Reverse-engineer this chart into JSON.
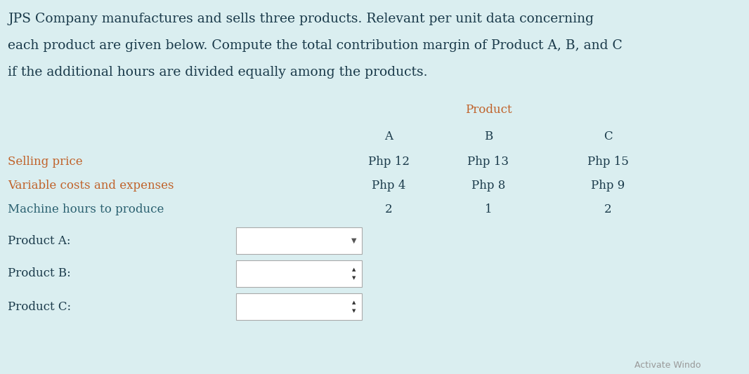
{
  "bg_color": "#daeef0",
  "text_color_dark": "#1a3a4a",
  "text_color_orange": "#c0622a",
  "text_color_blue": "#2a6070",
  "header_text": "JPS Company manufactures and sells three products. Relevant per unit data concerning\neach product are given below. Compute the total contribution margin of Product A, B, and C\nif the additional hours are divided equally among the products.",
  "product_label": "Product",
  "col_headers": [
    "A",
    "B",
    "C"
  ],
  "row_labels": [
    "Selling price",
    "Variable costs and expenses",
    "Machine hours to produce"
  ],
  "row_label_colors": [
    "orange",
    "orange",
    "blue"
  ],
  "data_values": [
    [
      "Php 12",
      "Php 13",
      "Php 15"
    ],
    [
      "Php 4",
      "Php 8",
      "Php 9"
    ],
    [
      "2",
      "1",
      "2"
    ]
  ],
  "answer_labels": [
    "Product A:",
    "Product B:",
    "Product C:"
  ],
  "watermark": "Activate Windo",
  "font_size_header": 13.5,
  "font_size_table": 12,
  "font_size_answer": 12
}
